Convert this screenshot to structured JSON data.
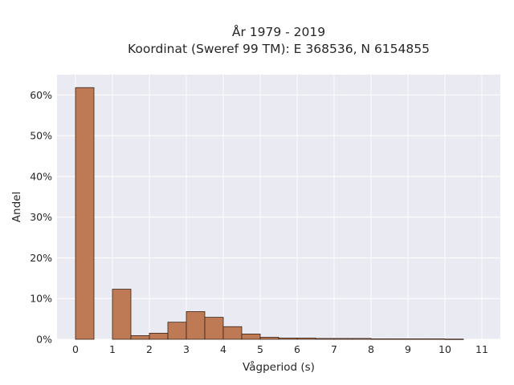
{
  "chart_data": {
    "type": "bar",
    "title": "År 1979 - 2019",
    "subtitle": "Koordinat (Sweref 99 TM): E 368536, N 6154855",
    "xlabel": "Vågperiod (s)",
    "ylabel": "Andel",
    "xlim": [
      -0.5,
      11.5
    ],
    "ylim": [
      0,
      0.65
    ],
    "xticks": [
      0,
      1,
      2,
      3,
      4,
      5,
      6,
      7,
      8,
      9,
      10,
      11
    ],
    "yticks": [
      0,
      0.1,
      0.2,
      0.3,
      0.4,
      0.5,
      0.6
    ],
    "ytick_labels": [
      "0%",
      "10%",
      "20%",
      "30%",
      "40%",
      "50%",
      "60%"
    ],
    "bin_width": 0.5,
    "bins": [
      {
        "x0": 0.0,
        "value": 0.618
      },
      {
        "x0": 0.5,
        "value": 0.0
      },
      {
        "x0": 1.0,
        "value": 0.123
      },
      {
        "x0": 1.5,
        "value": 0.009
      },
      {
        "x0": 2.0,
        "value": 0.015
      },
      {
        "x0": 2.5,
        "value": 0.042
      },
      {
        "x0": 3.0,
        "value": 0.068
      },
      {
        "x0": 3.5,
        "value": 0.054
      },
      {
        "x0": 4.0,
        "value": 0.031
      },
      {
        "x0": 4.5,
        "value": 0.013
      },
      {
        "x0": 5.0,
        "value": 0.005
      },
      {
        "x0": 5.5,
        "value": 0.003
      },
      {
        "x0": 6.0,
        "value": 0.003
      },
      {
        "x0": 6.5,
        "value": 0.002
      },
      {
        "x0": 7.0,
        "value": 0.002
      },
      {
        "x0": 7.5,
        "value": 0.002
      },
      {
        "x0": 8.0,
        "value": 0.001
      },
      {
        "x0": 8.5,
        "value": 0.001
      },
      {
        "x0": 9.0,
        "value": 0.001
      },
      {
        "x0": 9.5,
        "value": 0.001
      },
      {
        "x0": 10.0,
        "value": 0.0005
      }
    ],
    "grid": true,
    "colors": {
      "bar": "#b86e44",
      "edge": "#3a2418",
      "plot_bg": "#eaeaf2",
      "grid": "#ffffff"
    }
  }
}
